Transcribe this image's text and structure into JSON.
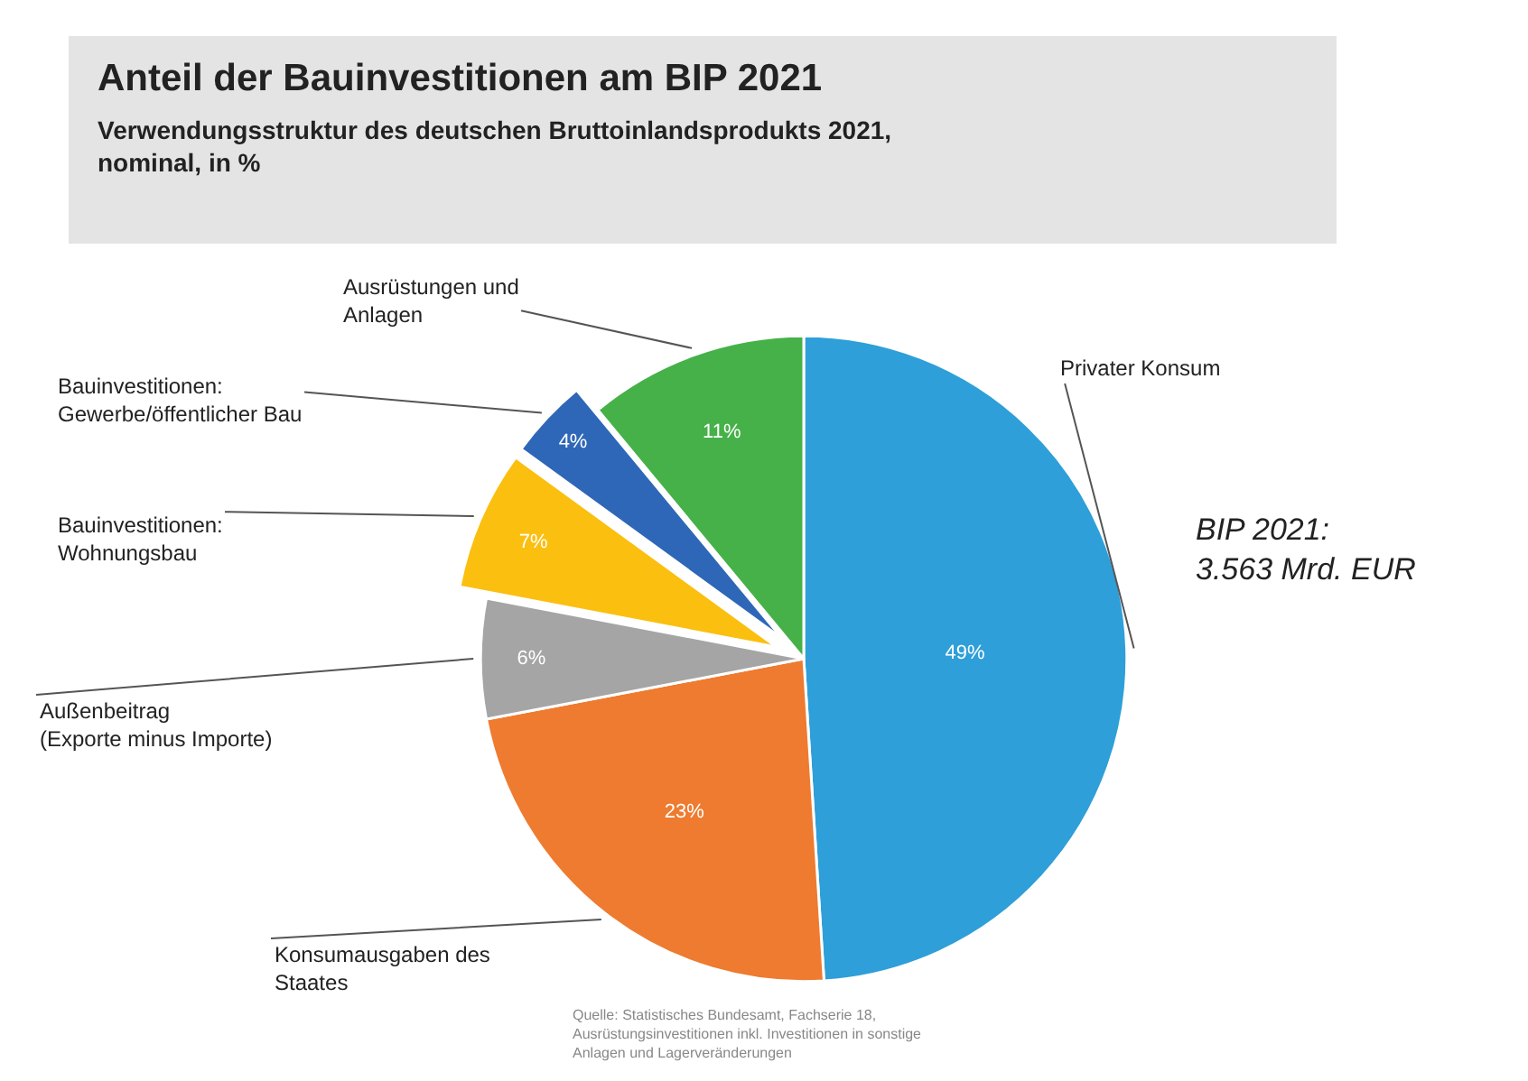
{
  "chart_data": {
    "type": "pie",
    "title": "Anteil der Bauinvestitionen am BIP 2021",
    "subtitle": "Verwendungsstruktur des deutschen Bruttoinlandsprodukts 2021, nominal, in %",
    "categories": [
      "Privater Konsum",
      "Konsumausgaben des Staates",
      "Außenbeitrag (Exporte minus Importe)",
      "Bauinvestitionen: Wohnungsbau",
      "Bauinvestitionen: Gewerbe/öffentlicher Bau",
      "Ausrüstungen und Anlagen"
    ],
    "values": [
      49,
      23,
      6,
      7,
      4,
      11
    ],
    "colors": [
      "#2e9fd8",
      "#ee7b30",
      "#a5a5a5",
      "#fbbf0f",
      "#2e67b7",
      "#46b149"
    ],
    "value_labels": [
      "49%",
      "23%",
      "6%",
      "7%",
      "4%",
      "11%"
    ],
    "annotations": [
      "BIP 2021:\n3.563 Mrd. EUR",
      "Quelle: Statistisches Bundesamt, Fachserie 18,\nAusrüstungsinvestitionen inkl. Investitionen in sonstige\nAnlagen und Lagerveränderungen"
    ],
    "legend": false
  }
}
